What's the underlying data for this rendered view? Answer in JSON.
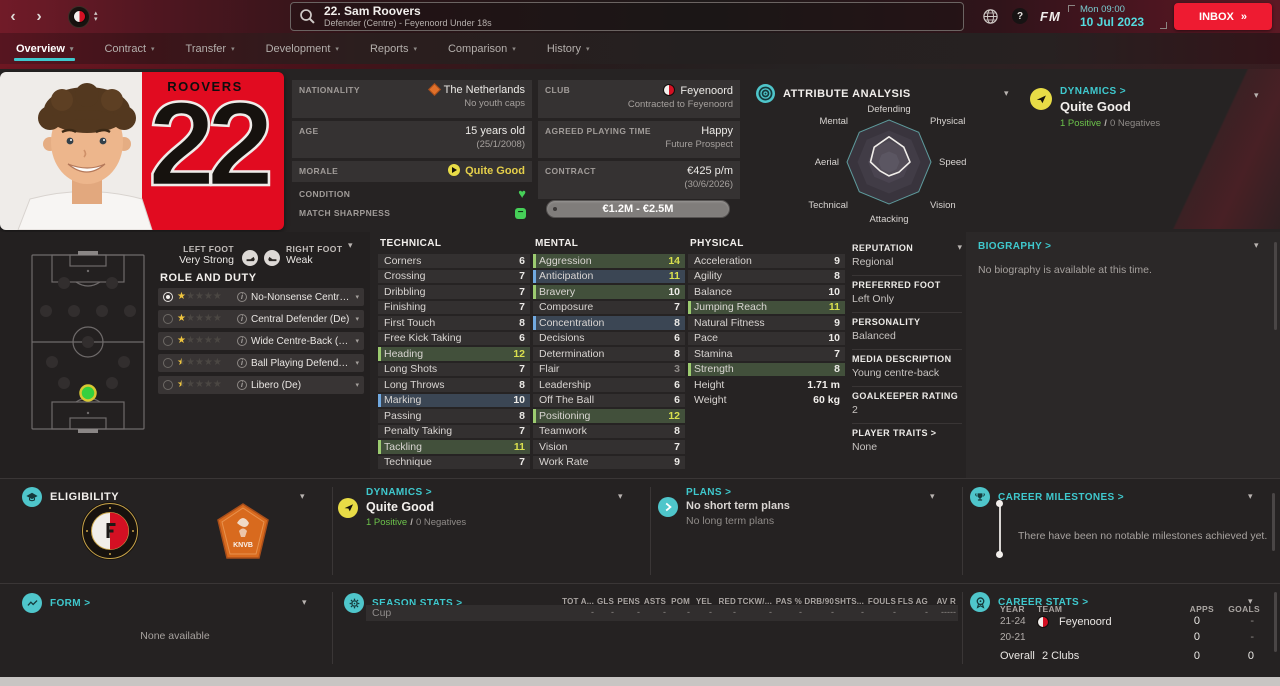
{
  "glyphs": {
    "back": "‹",
    "forward": "›",
    "inbox_arrow": "»",
    "help": "?",
    "minus": "−",
    "heart": "♥",
    "up": "▴",
    "down": "▾"
  },
  "titlebar": {
    "title": "22. Sam Roovers",
    "subtitle": "Defender (Centre) - Feyenoord Under 18s",
    "time": "Mon 09:00",
    "date": "10 Jul 2023",
    "inbox": "INBOX",
    "fm": "FM"
  },
  "nav": {
    "tabs": [
      {
        "label": "Overview",
        "active": true
      },
      {
        "label": "Contract"
      },
      {
        "label": "Transfer"
      },
      {
        "label": "Development"
      },
      {
        "label": "Reports"
      },
      {
        "label": "Comparison"
      },
      {
        "label": "History"
      }
    ]
  },
  "player_card": {
    "surname": "ROOVERS",
    "number": "22"
  },
  "personal": {
    "nationality_label": "NATIONALITY",
    "nationality": "The Netherlands",
    "youth_caps": "No youth caps",
    "age_label": "AGE",
    "age": "15 years old",
    "dob": "(25/1/2008)",
    "morale_label": "MORALE",
    "morale": "Quite Good",
    "condition_label": "CONDITION",
    "sharpness_label": "MATCH SHARPNESS"
  },
  "club_info": {
    "club_label": "CLUB",
    "club": "Feyenoord",
    "contracted": "Contracted to Feyenoord",
    "apt_label": "AGREED PLAYING TIME",
    "apt_mood": "Happy",
    "apt_status": "Future Prospect",
    "contract_label": "CONTRACT",
    "wage": "€425 p/m",
    "expiry": "(30/6/2026)",
    "value": "€1.2M - €2.5M"
  },
  "attribute_analysis": {
    "title": "ATTRIBUTE ANALYSIS",
    "axes": [
      "Defending",
      "Physical",
      "Speed",
      "Vision",
      "Attacking",
      "Technical",
      "Aerial",
      "Mental"
    ],
    "values": [
      0.6,
      0.5,
      0.5,
      0.34,
      0.33,
      0.3,
      0.44,
      0.5
    ]
  },
  "dynamics": {
    "title": "DYNAMICS >",
    "status": "Quite Good",
    "positives": "1 Positive",
    "sep": "/",
    "negatives": "0 Negatives"
  },
  "feet": {
    "left_label": "LEFT FOOT",
    "left": "Very Strong",
    "right_label": "RIGHT FOOT",
    "right": "Weak"
  },
  "role_duty": {
    "title": "ROLE AND DUTY",
    "position": "Defender (Centre)",
    "roles": [
      {
        "name": "No-Nonsense Centre-Bac...",
        "stars": 1,
        "selected": true
      },
      {
        "name": "Central Defender (De)",
        "stars": 1
      },
      {
        "name": "Wide Centre-Back (De)",
        "stars": 1
      },
      {
        "name": "Ball Playing Defender (De)",
        "stars": 0.5
      },
      {
        "name": "Libero (De)",
        "stars": 0.5
      }
    ]
  },
  "attributes": {
    "technical": {
      "title": "TECHNICAL",
      "rows": [
        {
          "n": "Corners",
          "v": 6
        },
        {
          "n": "Crossing",
          "v": 7
        },
        {
          "n": "Dribbling",
          "v": 7
        },
        {
          "n": "Finishing",
          "v": 7
        },
        {
          "n": "First Touch",
          "v": 8
        },
        {
          "n": "Free Kick Taking",
          "v": 6
        },
        {
          "n": "Heading",
          "v": 12,
          "hl": "g"
        },
        {
          "n": "Long Shots",
          "v": 7
        },
        {
          "n": "Long Throws",
          "v": 8
        },
        {
          "n": "Marking",
          "v": 10,
          "hl": "b"
        },
        {
          "n": "Passing",
          "v": 8
        },
        {
          "n": "Penalty Taking",
          "v": 7
        },
        {
          "n": "Tackling",
          "v": 11,
          "hl": "g"
        },
        {
          "n": "Technique",
          "v": 7
        }
      ]
    },
    "mental": {
      "title": "MENTAL",
      "rows": [
        {
          "n": "Aggression",
          "v": 14,
          "hl": "g"
        },
        {
          "n": "Anticipation",
          "v": 11,
          "hl": "b"
        },
        {
          "n": "Bravery",
          "v": 10,
          "hl": "g"
        },
        {
          "n": "Composure",
          "v": 7
        },
        {
          "n": "Concentration",
          "v": 8,
          "hl": "b"
        },
        {
          "n": "Decisions",
          "v": 6
        },
        {
          "n": "Determination",
          "v": 8
        },
        {
          "n": "Flair",
          "v": 3
        },
        {
          "n": "Leadership",
          "v": 6
        },
        {
          "n": "Off The Ball",
          "v": 6
        },
        {
          "n": "Positioning",
          "v": 12,
          "hl": "g"
        },
        {
          "n": "Teamwork",
          "v": 8
        },
        {
          "n": "Vision",
          "v": 7
        },
        {
          "n": "Work Rate",
          "v": 9
        }
      ]
    },
    "physical": {
      "title": "PHYSICAL",
      "rows": [
        {
          "n": "Acceleration",
          "v": 9
        },
        {
          "n": "Agility",
          "v": 8
        },
        {
          "n": "Balance",
          "v": 10
        },
        {
          "n": "Jumping Reach",
          "v": 11,
          "hl": "g"
        },
        {
          "n": "Natural Fitness",
          "v": 9
        },
        {
          "n": "Pace",
          "v": 10
        },
        {
          "n": "Stamina",
          "v": 7
        },
        {
          "n": "Strength",
          "v": 8,
          "hl": "g"
        }
      ],
      "meta": [
        {
          "n": "Height",
          "v": "1.71 m"
        },
        {
          "n": "Weight",
          "v": "60 kg"
        }
      ]
    }
  },
  "profile": {
    "items": [
      {
        "label": "REPUTATION",
        "value": "Regional",
        "chevron": true
      },
      {
        "label": "PREFERRED FOOT",
        "value": "Left Only"
      },
      {
        "label": "PERSONALITY",
        "value": "Balanced"
      },
      {
        "label": "MEDIA DESCRIPTION",
        "value": "Young centre-back"
      },
      {
        "label": "GOALKEEPER RATING",
        "value": "2"
      },
      {
        "label": "PLAYER TRAITS >",
        "value": "None"
      }
    ]
  },
  "biography": {
    "title": "BIOGRAPHY >",
    "text": "No biography is available at this time."
  },
  "eligibility": {
    "title": "ELIGIBILITY",
    "knvb": "KNVB"
  },
  "plans": {
    "title": "PLANS >",
    "short_term": "No short term plans",
    "long_term": "No long term plans"
  },
  "milestones": {
    "title": "CAREER MILESTONES >",
    "empty": "There have been no notable milestones achieved yet."
  },
  "form": {
    "title": "FORM >",
    "empty": "None available"
  },
  "season_stats": {
    "title": "SEASON STATS >",
    "competition": "Cup",
    "columns": [
      "TOT A...",
      "GLS",
      "PENS",
      "ASTS",
      "POM",
      "YEL",
      "RED",
      "TCKW/...",
      "PAS %",
      "DRB/90",
      "SHTS...",
      "FOULS",
      "FLS AG",
      "AV R"
    ],
    "values": [
      "-",
      "-",
      "-",
      "-",
      "-",
      "-",
      "-",
      "-",
      "-",
      "-",
      "-",
      "-",
      "-",
      "-----"
    ]
  },
  "career_stats": {
    "title": "CAREER STATS >",
    "headers": {
      "year": "YEAR",
      "team": "TEAM",
      "apps": "APPS",
      "goals": "GOALS"
    },
    "rows": [
      {
        "year": "21-24",
        "team": "Feyenoord",
        "badge": true,
        "apps": "0",
        "goals": "-"
      },
      {
        "year": "20-21",
        "team": "",
        "badge": false,
        "apps": "0",
        "goals": "-"
      }
    ],
    "overall": {
      "label": "Overall",
      "team": "2 Clubs",
      "apps": "0",
      "goals": "0"
    }
  }
}
